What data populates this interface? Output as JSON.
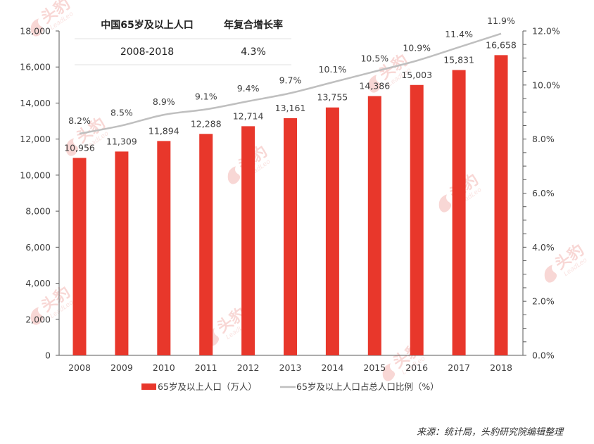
{
  "chart_data": {
    "type": "bar",
    "title": "",
    "categories": [
      "2008",
      "2009",
      "2010",
      "2011",
      "2012",
      "2013",
      "2014",
      "2015",
      "2016",
      "2017",
      "2018"
    ],
    "series": [
      {
        "name": "65岁及以上人口（万人）",
        "type": "bar",
        "axis": "left",
        "color": "#e8372b",
        "values": [
          10956,
          11309,
          11894,
          12288,
          12714,
          13161,
          13755,
          14386,
          15003,
          15831,
          16658
        ],
        "labels": [
          "10,956",
          "11,309",
          "11,894",
          "12,288",
          "12,714",
          "13,161",
          "13,755",
          "14,386",
          "15,003",
          "15,831",
          "16,658"
        ]
      },
      {
        "name": "65岁及以上人口占总人口比例（%）",
        "type": "line",
        "axis": "right",
        "color": "#bfbfbf",
        "values": [
          8.2,
          8.5,
          8.9,
          9.1,
          9.4,
          9.7,
          10.1,
          10.5,
          10.9,
          11.4,
          11.9
        ],
        "labels": [
          "8.2%",
          "8.5%",
          "8.9%",
          "9.1%",
          "9.4%",
          "9.7%",
          "10.1%",
          "10.5%",
          "10.9%",
          "11.4%",
          "11.9%"
        ]
      }
    ],
    "y_left": {
      "label": "",
      "lim": [
        0,
        18000
      ],
      "ticks": [
        0,
        2000,
        4000,
        6000,
        8000,
        10000,
        12000,
        14000,
        16000,
        18000
      ],
      "tick_labels": [
        "0",
        "2,000",
        "4,000",
        "6,000",
        "8,000",
        "10,000",
        "12,000",
        "14,000",
        "16,000",
        "18,000"
      ]
    },
    "y_right": {
      "label": "",
      "lim": [
        0,
        12
      ],
      "ticks": [
        0,
        2,
        4,
        6,
        8,
        10,
        12
      ],
      "tick_labels": [
        "0.0%",
        "2.0%",
        "4.0%",
        "6.0%",
        "8.0%",
        "10.0%",
        "12.0%"
      ],
      "minor_step": 0.5
    },
    "xlabel": "",
    "grid": false,
    "legend": {
      "position": "bottom",
      "entries": [
        "65岁及以上人口（万人）",
        "65岁及以上人口占总人口比例（%）"
      ]
    },
    "inset_table": {
      "headers": [
        "中国65岁及以上人口",
        "年复合增长率"
      ],
      "row": [
        "2008-2018",
        "4.3%"
      ]
    }
  },
  "source": "来源：统计局，头豹研究院编辑整理",
  "watermark": {
    "text": "头豹",
    "sub": "LeadLeo"
  }
}
